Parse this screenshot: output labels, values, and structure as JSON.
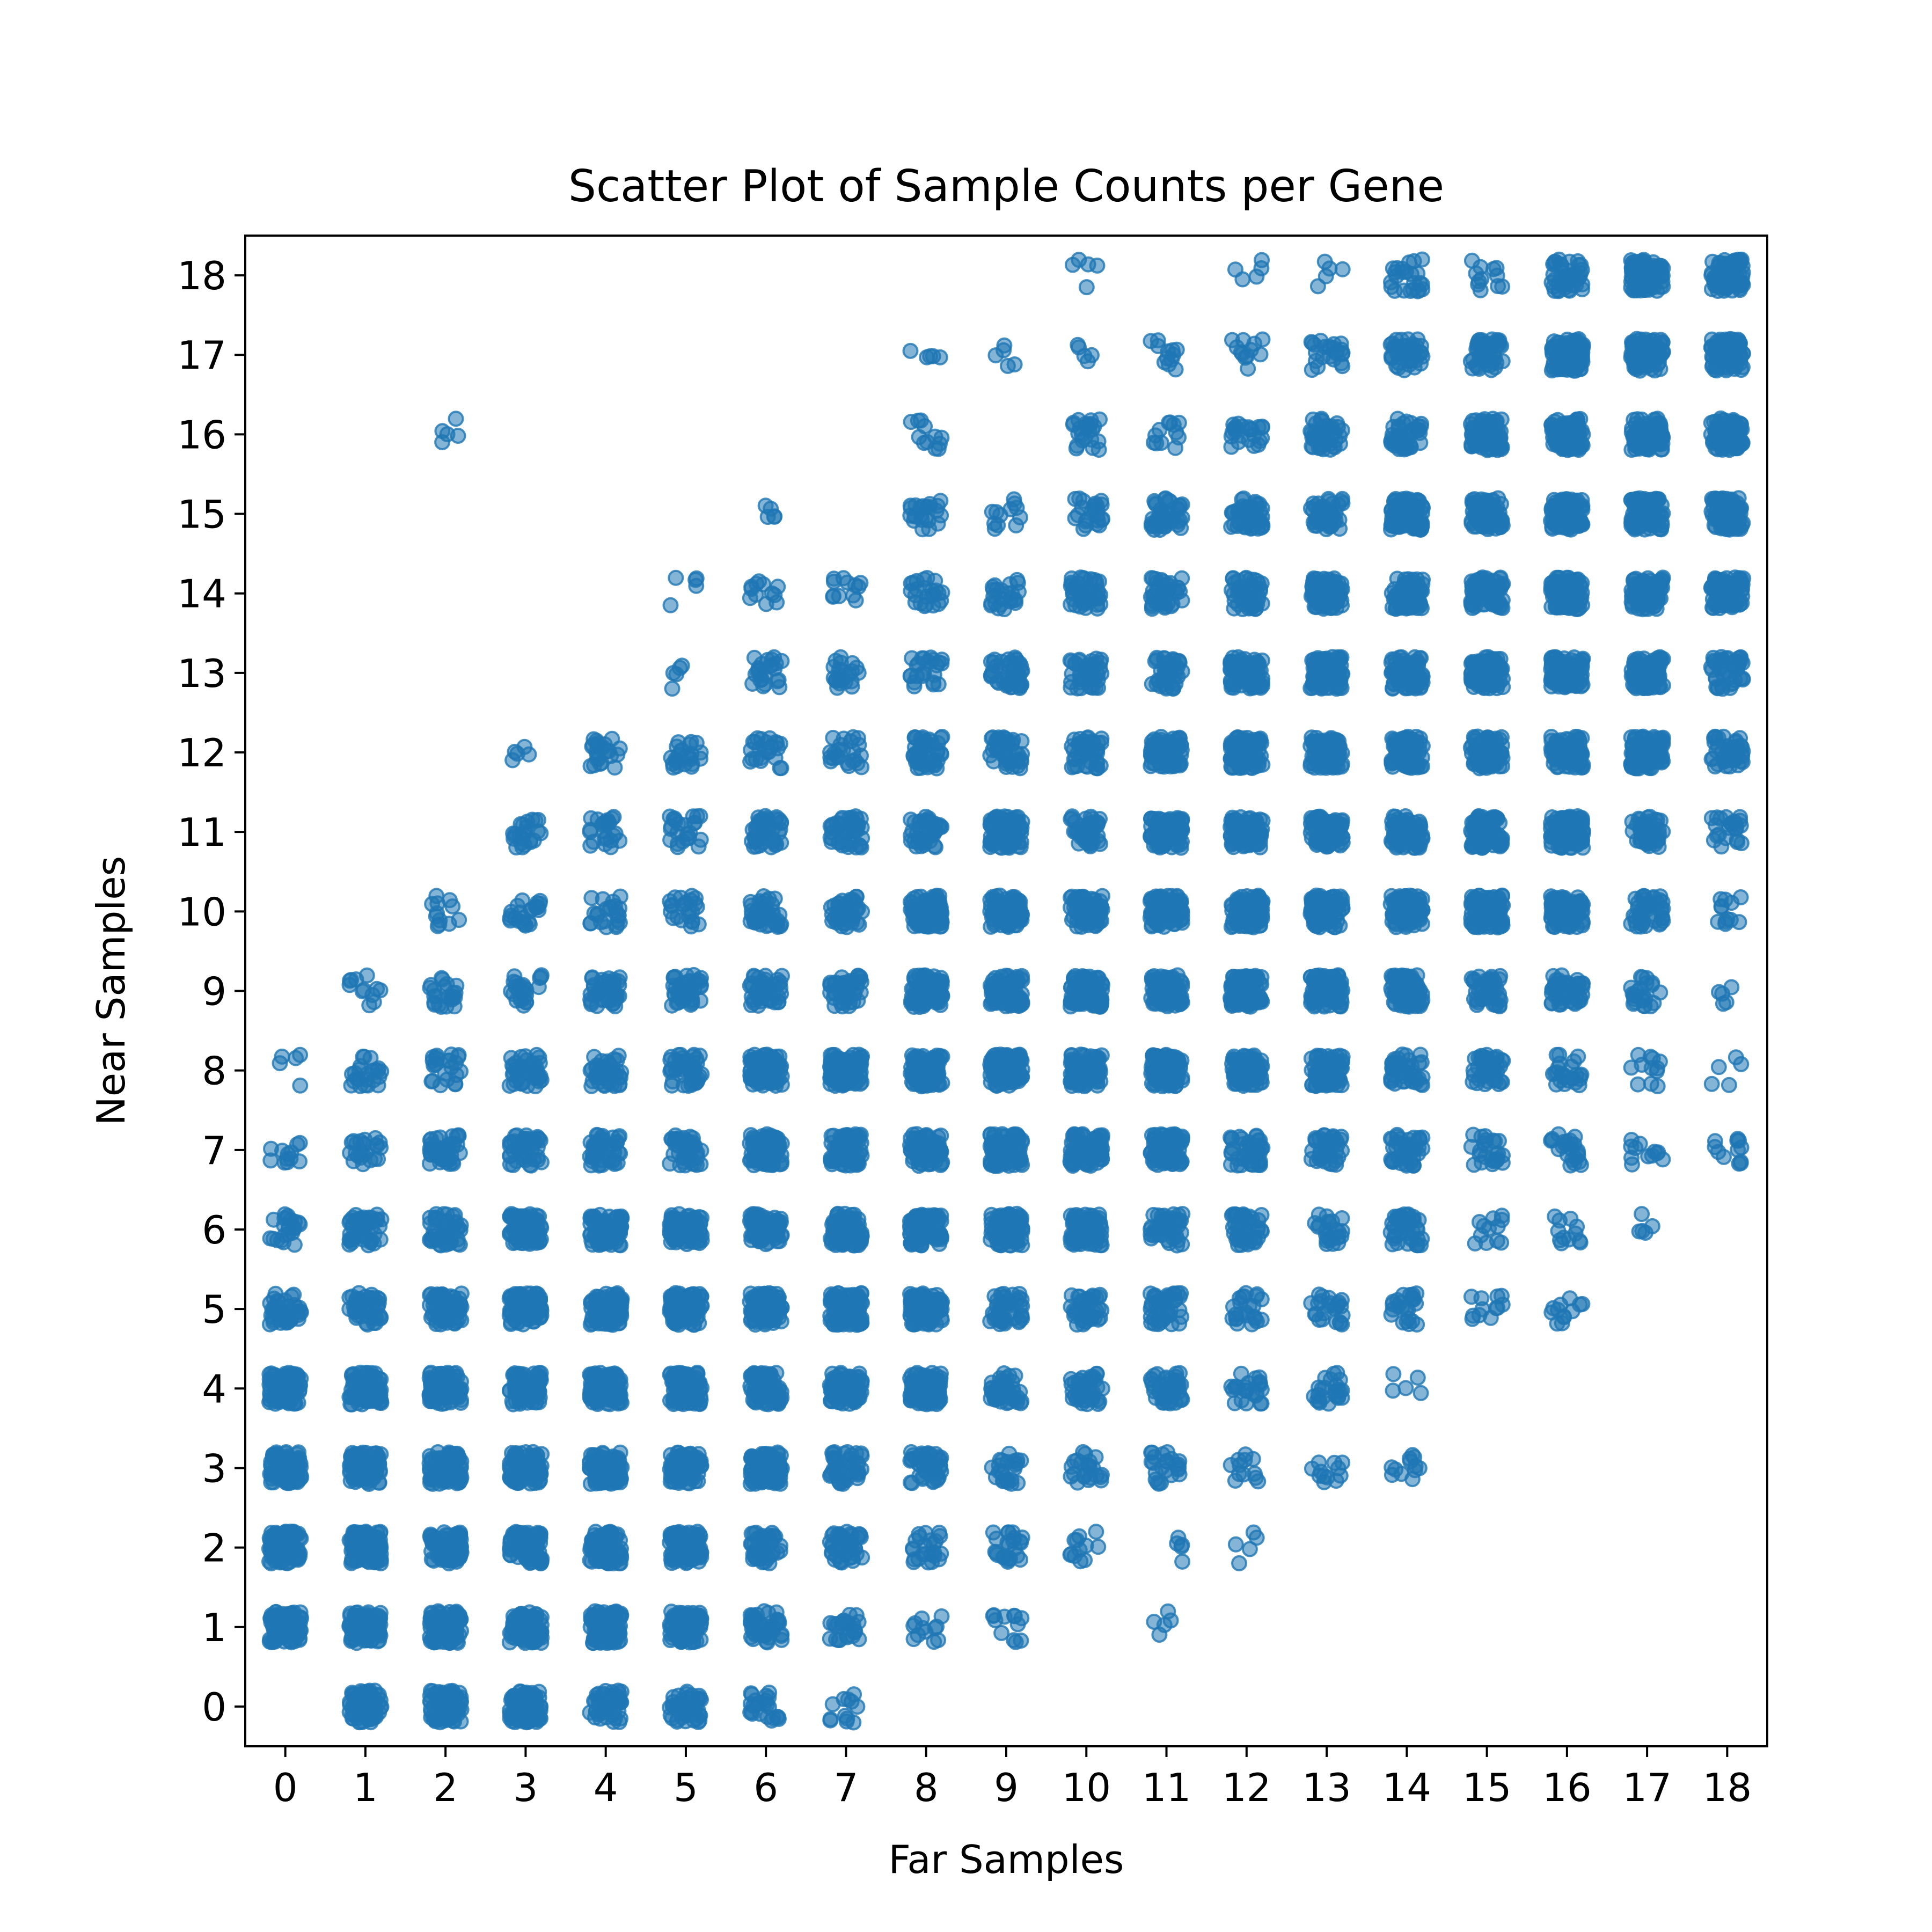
{
  "chart_data": {
    "type": "scatter",
    "title": "Scatter Plot of Sample Counts per Gene",
    "xlabel": "Far Samples",
    "ylabel": "Near Samples",
    "xlim": [
      -0.5,
      18.5
    ],
    "ylim": [
      -0.5,
      18.5
    ],
    "xticks": [
      "0",
      "1",
      "2",
      "3",
      "4",
      "5",
      "6",
      "7",
      "8",
      "9",
      "10",
      "11",
      "12",
      "13",
      "14",
      "15",
      "16",
      "17",
      "18"
    ],
    "yticks": [
      "0",
      "1",
      "2",
      "3",
      "4",
      "5",
      "6",
      "7",
      "8",
      "9",
      "10",
      "11",
      "12",
      "13",
      "14",
      "15",
      "16",
      "17",
      "18"
    ],
    "grid": false,
    "marker_color": "#1f77b4",
    "marker_alpha": 0.55,
    "jitter": 0.2,
    "note_density": "cluster size per (far, near) integer cell; higher = denser blob",
    "density_rows": {
      "0": [
        0,
        5,
        5,
        5,
        4,
        4,
        3,
        2,
        0,
        0,
        0,
        0,
        0,
        0,
        0,
        0,
        0,
        0,
        0
      ],
      "1": [
        5,
        5,
        5,
        5,
        5,
        5,
        4,
        3,
        2,
        2,
        0,
        1,
        0,
        0,
        0,
        0,
        0,
        0,
        0
      ],
      "2": [
        5,
        5,
        5,
        5,
        5,
        5,
        4,
        4,
        3,
        3,
        2,
        1,
        1,
        0,
        0,
        0,
        0,
        0,
        0
      ],
      "3": [
        5,
        5,
        5,
        5,
        5,
        5,
        5,
        4,
        4,
        3,
        3,
        3,
        2,
        2,
        2,
        0,
        0,
        0,
        0
      ],
      "4": [
        5,
        5,
        5,
        5,
        5,
        5,
        5,
        5,
        5,
        4,
        4,
        4,
        3,
        3,
        1,
        0,
        0,
        0,
        0
      ],
      "5": [
        4,
        4,
        5,
        5,
        5,
        5,
        5,
        5,
        5,
        4,
        4,
        4,
        3,
        3,
        3,
        2,
        2,
        0,
        0
      ],
      "6": [
        3,
        4,
        4,
        5,
        5,
        5,
        5,
        5,
        5,
        5,
        5,
        4,
        4,
        3,
        4,
        2,
        2,
        1,
        0
      ],
      "7": [
        2,
        3,
        4,
        4,
        4,
        4,
        5,
        5,
        5,
        5,
        5,
        5,
        4,
        4,
        4,
        3,
        3,
        2,
        2
      ],
      "8": [
        1,
        3,
        3,
        4,
        4,
        4,
        5,
        5,
        5,
        5,
        5,
        5,
        5,
        5,
        4,
        4,
        3,
        2,
        1
      ],
      "9": [
        0,
        2,
        3,
        3,
        4,
        4,
        4,
        4,
        5,
        5,
        5,
        5,
        5,
        5,
        5,
        4,
        4,
        3,
        1
      ],
      "10": [
        0,
        0,
        2,
        3,
        3,
        3,
        4,
        4,
        5,
        5,
        5,
        5,
        5,
        5,
        5,
        5,
        5,
        4,
        2
      ],
      "11": [
        0,
        0,
        0,
        3,
        3,
        3,
        4,
        4,
        4,
        5,
        4,
        5,
        5,
        5,
        5,
        5,
        5,
        4,
        3
      ],
      "12": [
        0,
        0,
        0,
        1,
        3,
        3,
        3,
        3,
        4,
        4,
        4,
        5,
        5,
        5,
        5,
        5,
        5,
        5,
        4
      ],
      "13": [
        0,
        0,
        0,
        0,
        0,
        1,
        3,
        3,
        3,
        4,
        4,
        4,
        5,
        5,
        5,
        5,
        5,
        5,
        4
      ],
      "14": [
        0,
        0,
        0,
        0,
        0,
        1,
        2,
        2,
        3,
        3,
        4,
        4,
        4,
        5,
        5,
        5,
        5,
        5,
        5
      ],
      "15": [
        0,
        0,
        0,
        0,
        0,
        0,
        1,
        0,
        3,
        2,
        3,
        4,
        4,
        4,
        5,
        5,
        5,
        5,
        5
      ],
      "16": [
        0,
        0,
        1,
        0,
        0,
        0,
        0,
        0,
        2,
        0,
        3,
        2,
        3,
        4,
        4,
        5,
        5,
        5,
        5
      ],
      "17": [
        0,
        0,
        0,
        0,
        0,
        0,
        0,
        0,
        1,
        1,
        1,
        2,
        2,
        3,
        4,
        4,
        5,
        5,
        5
      ],
      "18": [
        0,
        0,
        0,
        0,
        0,
        0,
        0,
        0,
        0,
        0,
        1,
        0,
        1,
        1,
        3,
        2,
        4,
        5,
        5
      ]
    }
  }
}
